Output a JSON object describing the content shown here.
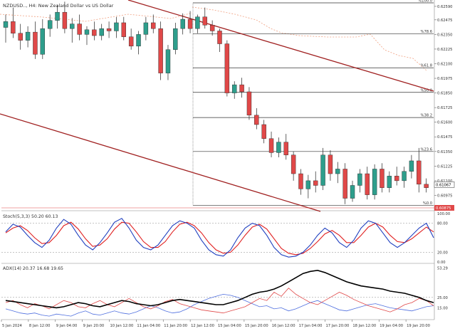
{
  "symbol_label": "NZDUSD.., H4:  New Zealand Dollar vs US Dollar",
  "price_axis": [
    "0.62590",
    "0.62475",
    "0.62350",
    "0.62225",
    "0.62100",
    "0.61975",
    "0.61850",
    "0.61725",
    "0.61600",
    "0.61475",
    "0.61350",
    "0.61225",
    "0.61100",
    "0.60975"
  ],
  "price_range": [
    0.6085,
    0.6262
  ],
  "current_price": "0.61067",
  "low_tag": "0.60875",
  "fib_levels": [
    {
      "label": "%100.0",
      "price": 0.6262
    },
    {
      "label": "%78.6",
      "price": 0.62355
    },
    {
      "label": "%61.8",
      "price": 0.62065
    },
    {
      "label": "%50.0",
      "price": 0.61855
    },
    {
      "label": "%38.2",
      "price": 0.6164
    },
    {
      "label": "%23.6",
      "price": 0.6135
    },
    {
      "label": "%0.0",
      "price": 0.6089
    }
  ],
  "stoch": {
    "label": "Stoch(5,3,3) 50.20 60.13",
    "axis": [
      "100.00",
      "80.00",
      "20.00",
      "0.00"
    ],
    "main": [
      62,
      78,
      72,
      55,
      40,
      30,
      45,
      70,
      88,
      78,
      55,
      35,
      25,
      40,
      60,
      82,
      90,
      70,
      45,
      30,
      25,
      35,
      55,
      75,
      85,
      80,
      70,
      45,
      25,
      15,
      12,
      25,
      50,
      70,
      80,
      75,
      55,
      30,
      15,
      10,
      12,
      20,
      35,
      55,
      70,
      60,
      40,
      30,
      45,
      70,
      85,
      80,
      60,
      40,
      30,
      40,
      55,
      70,
      80,
      50
    ],
    "signal": [
      60,
      70,
      75,
      65,
      50,
      38,
      40,
      55,
      75,
      82,
      68,
      48,
      32,
      35,
      48,
      68,
      82,
      80,
      62,
      42,
      30,
      30,
      42,
      62,
      78,
      82,
      75,
      60,
      40,
      25,
      18,
      20,
      35,
      55,
      72,
      78,
      68,
      48,
      28,
      18,
      15,
      18,
      28,
      42,
      58,
      65,
      55,
      40,
      40,
      55,
      72,
      80,
      72,
      55,
      42,
      40,
      48,
      60,
      72,
      62
    ]
  },
  "adx": {
    "label": "ADX(14) 20.37 16.68 19.65",
    "axis": [
      "53.29",
      "25.00",
      "15.00"
    ],
    "adx": [
      22,
      21,
      20,
      19,
      18,
      17,
      16,
      15,
      16,
      18,
      20,
      19,
      17,
      16,
      18,
      20,
      22,
      21,
      19,
      18,
      17,
      18,
      20,
      22,
      23,
      22,
      21,
      20,
      19,
      18,
      18,
      20,
      22,
      25,
      28,
      30,
      31,
      33,
      36,
      40,
      44,
      48,
      50,
      51,
      49,
      46,
      43,
      40,
      38,
      36,
      35,
      34,
      33,
      31,
      30,
      29,
      27,
      25,
      22,
      20
    ],
    "plus_di": [
      20,
      22,
      18,
      15,
      19,
      17,
      14,
      18,
      22,
      20,
      16,
      15,
      19,
      22,
      18,
      16,
      20,
      24,
      20,
      16,
      14,
      17,
      21,
      23,
      19,
      17,
      15,
      13,
      12,
      11,
      10,
      12,
      14,
      16,
      20,
      24,
      22,
      30,
      26,
      34,
      28,
      24,
      20,
      18,
      22,
      26,
      30,
      27,
      23,
      20,
      17,
      15,
      13,
      11,
      14,
      18,
      20,
      24,
      22,
      17
    ],
    "minus_di": [
      14,
      12,
      10,
      9,
      10,
      8,
      7,
      9,
      8,
      7,
      10,
      12,
      9,
      8,
      10,
      12,
      10,
      9,
      11,
      14,
      17,
      15,
      12,
      10,
      11,
      14,
      18,
      21,
      24,
      26,
      28,
      27,
      25,
      22,
      19,
      16,
      17,
      14,
      15,
      12,
      14,
      17,
      20,
      22,
      19,
      16,
      13,
      12,
      14,
      16,
      18,
      19,
      17,
      15,
      14,
      13,
      12,
      14,
      16,
      17
    ]
  },
  "time_labels": [
    "5 Jan 2024",
    "8 Jan 12:00",
    "9 Jan 04:00",
    "9 Jan 20:00",
    "10 Jan 12:00",
    "11 Jan 04:00",
    "11 Jan 20:00",
    "12 Jan 12:00",
    "15 Jan 04:00",
    "15 Jan 20:00",
    "16 Jan 12:00",
    "17 Jan 04:00",
    "17 Jan 20:00",
    "18 Jan 12:00",
    "19 Jan 04:00",
    "19 Jan 20:00"
  ],
  "candles": [
    [
      0.6241,
      0.6252,
      0.6228,
      0.6246
    ],
    [
      0.6246,
      0.6258,
      0.6232,
      0.6236
    ],
    [
      0.6236,
      0.6244,
      0.6222,
      0.623
    ],
    [
      0.623,
      0.6242,
      0.6224,
      0.6237
    ],
    [
      0.6237,
      0.6246,
      0.6214,
      0.6218
    ],
    [
      0.6218,
      0.6248,
      0.6214,
      0.624
    ],
    [
      0.624,
      0.6252,
      0.6233,
      0.6247
    ],
    [
      0.6247,
      0.626,
      0.624,
      0.6254
    ],
    [
      0.6254,
      0.6263,
      0.6236,
      0.624
    ],
    [
      0.624,
      0.6249,
      0.6228,
      0.6244
    ],
    [
      0.6244,
      0.6252,
      0.623,
      0.6235
    ],
    [
      0.6235,
      0.6242,
      0.6226,
      0.6239
    ],
    [
      0.6239,
      0.6246,
      0.623,
      0.6234
    ],
    [
      0.6234,
      0.6244,
      0.623,
      0.624
    ],
    [
      0.624,
      0.6246,
      0.6232,
      0.6238
    ],
    [
      0.6238,
      0.625,
      0.6232,
      0.6245
    ],
    [
      0.6245,
      0.625,
      0.623,
      0.6233
    ],
    [
      0.6233,
      0.624,
      0.6222,
      0.6225
    ],
    [
      0.6225,
      0.6238,
      0.6218,
      0.6235
    ],
    [
      0.6235,
      0.625,
      0.623,
      0.6245
    ],
    [
      0.6245,
      0.6252,
      0.6236,
      0.624
    ],
    [
      0.624,
      0.6246,
      0.6196,
      0.6202
    ],
    [
      0.6202,
      0.6226,
      0.6196,
      0.6222
    ],
    [
      0.6222,
      0.6245,
      0.6218,
      0.624
    ],
    [
      0.624,
      0.6253,
      0.6235,
      0.6248
    ],
    [
      0.6248,
      0.6255,
      0.6236,
      0.624
    ],
    [
      0.624,
      0.6252,
      0.6236,
      0.625
    ],
    [
      0.625,
      0.6258,
      0.624,
      0.6243
    ],
    [
      0.6243,
      0.6247,
      0.6234,
      0.6238
    ],
    [
      0.6238,
      0.624,
      0.622,
      0.6227
    ],
    [
      0.6227,
      0.623,
      0.6182,
      0.6185
    ],
    [
      0.6185,
      0.6195,
      0.618,
      0.6192
    ],
    [
      0.6192,
      0.6198,
      0.6181,
      0.6186
    ],
    [
      0.6186,
      0.619,
      0.6162,
      0.6166
    ],
    [
      0.6166,
      0.6172,
      0.6154,
      0.6158
    ],
    [
      0.6158,
      0.6162,
      0.6142,
      0.6146
    ],
    [
      0.6146,
      0.6152,
      0.613,
      0.6134
    ],
    [
      0.6134,
      0.6147,
      0.613,
      0.6143
    ],
    [
      0.6143,
      0.615,
      0.6128,
      0.6132
    ],
    [
      0.6132,
      0.6135,
      0.611,
      0.6116
    ],
    [
      0.6116,
      0.612,
      0.6098,
      0.6103
    ],
    [
      0.6103,
      0.6115,
      0.6095,
      0.611
    ],
    [
      0.611,
      0.6118,
      0.61,
      0.6106
    ],
    [
      0.6106,
      0.6138,
      0.6102,
      0.6132
    ],
    [
      0.6132,
      0.6136,
      0.611,
      0.6116
    ],
    [
      0.6116,
      0.6126,
      0.6108,
      0.612
    ],
    [
      0.612,
      0.6125,
      0.609,
      0.6095
    ],
    [
      0.6095,
      0.611,
      0.6092,
      0.6106
    ],
    [
      0.6106,
      0.612,
      0.61,
      0.6116
    ],
    [
      0.6116,
      0.6122,
      0.6094,
      0.6098
    ],
    [
      0.6098,
      0.6124,
      0.6094,
      0.612
    ],
    [
      0.612,
      0.6125,
      0.61,
      0.6104
    ],
    [
      0.6104,
      0.6118,
      0.61,
      0.6114
    ],
    [
      0.6114,
      0.6122,
      0.6106,
      0.611
    ],
    [
      0.611,
      0.6122,
      0.6104,
      0.6118
    ],
    [
      0.6118,
      0.6132,
      0.6112,
      0.6127
    ],
    [
      0.6127,
      0.6138,
      0.61,
      0.6107
    ],
    [
      0.6107,
      0.6112,
      0.61,
      0.6104
    ]
  ],
  "colors": {
    "bull": "#2e9e8c",
    "bear": "#e04848",
    "channel": "#a02020",
    "stoch_main": "#1f3fbf",
    "stoch_signal": "#e02020",
    "adx_line": "#000000",
    "plus_di": "#e04848",
    "minus_di": "#4f6fdf",
    "ichimoku": "#f0a080"
  }
}
